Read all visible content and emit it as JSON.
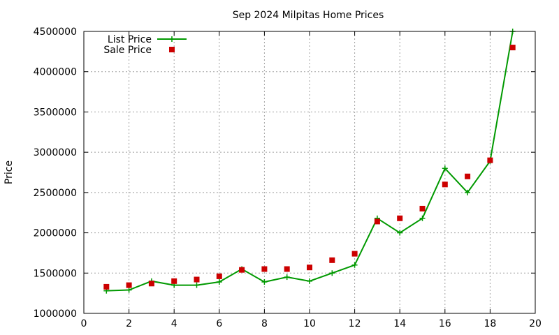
{
  "chart_data": {
    "type": "line",
    "title": "Sep 2024 Milpitas Home Prices",
    "xlabel": "",
    "ylabel": "Price",
    "xlim": [
      0,
      20
    ],
    "ylim": [
      1000000,
      4500000
    ],
    "xticks": [
      0,
      2,
      4,
      6,
      8,
      10,
      12,
      14,
      16,
      18,
      20
    ],
    "yticks": [
      1000000,
      1500000,
      2000000,
      2500000,
      3000000,
      3500000,
      4000000,
      4500000
    ],
    "grid": true,
    "legend_position": "top-left",
    "series": [
      {
        "name": "List Price",
        "style": "lines+points",
        "marker": "plus",
        "color": "#009900",
        "x": [
          1,
          2,
          3,
          4,
          5,
          6,
          7,
          8,
          9,
          10,
          11,
          12,
          13,
          14,
          15,
          16,
          17,
          18,
          19
        ],
        "y": [
          1280000,
          1290000,
          1400000,
          1350000,
          1350000,
          1390000,
          1550000,
          1390000,
          1450000,
          1400000,
          1500000,
          1600000,
          2180000,
          2000000,
          2180000,
          2800000,
          2500000,
          2890000,
          4500000
        ]
      },
      {
        "name": "Sale Price",
        "style": "points",
        "marker": "square",
        "color": "#cc0000",
        "x": [
          1,
          2,
          3,
          4,
          5,
          6,
          7,
          8,
          9,
          10,
          11,
          12,
          13,
          14,
          15,
          16,
          17,
          18,
          19
        ],
        "y": [
          1330000,
          1350000,
          1370000,
          1400000,
          1420000,
          1460000,
          1540000,
          1550000,
          1550000,
          1570000,
          1660000,
          1740000,
          2140000,
          2180000,
          2300000,
          2600000,
          2700000,
          2900000,
          4300000
        ]
      }
    ]
  }
}
